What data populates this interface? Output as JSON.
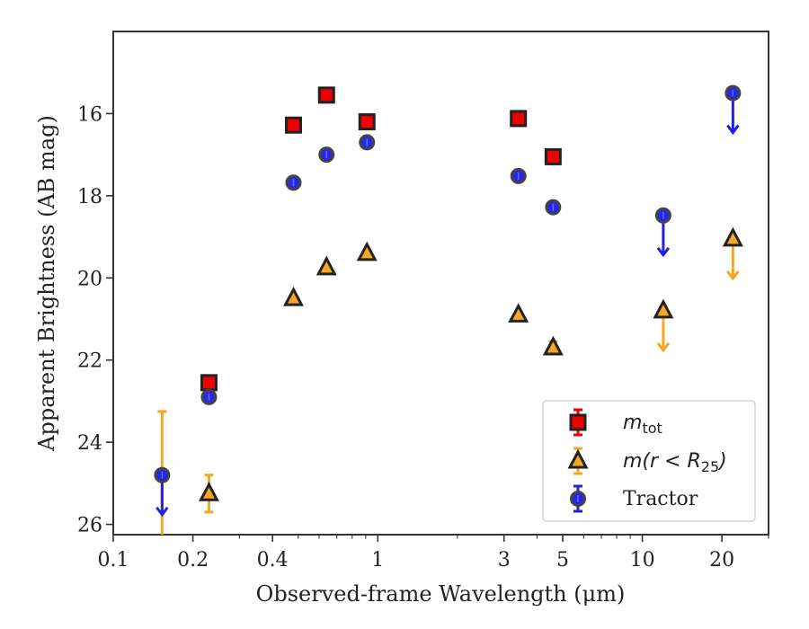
{
  "chart_data": {
    "type": "scatter",
    "xlabel": "Observed-frame Wavelength (μm)",
    "ylabel": "Apparent Brightness (AB mag)",
    "xscale": "log",
    "xlim": [
      0.1,
      30
    ],
    "ylim": [
      26.25,
      14.0
    ],
    "y_inverted": true,
    "xticks": [
      {
        "value": 0.1,
        "label": "0.1"
      },
      {
        "value": 0.2,
        "label": "0.2"
      },
      {
        "value": 0.4,
        "label": "0.4"
      },
      {
        "value": 1,
        "label": "1"
      },
      {
        "value": 3,
        "label": "3"
      },
      {
        "value": 5,
        "label": "5"
      },
      {
        "value": 10,
        "label": "10"
      },
      {
        "value": 20,
        "label": "20"
      }
    ],
    "yticks": [
      {
        "value": 16,
        "label": "16"
      },
      {
        "value": 18,
        "label": "18"
      },
      {
        "value": 20,
        "label": "20"
      },
      {
        "value": 22,
        "label": "22"
      },
      {
        "value": 24,
        "label": "24"
      },
      {
        "value": 26,
        "label": "26"
      }
    ],
    "grid": false,
    "legend_position": "lower-right",
    "series": [
      {
        "name": "m_tot",
        "marker": "square",
        "color": "#ee0000",
        "edge_color": "#222222",
        "points": [
          {
            "x": 0.23,
            "y": 22.55
          },
          {
            "x": 0.48,
            "y": 16.28
          },
          {
            "x": 0.64,
            "y": 15.55
          },
          {
            "x": 0.91,
            "y": 16.2
          },
          {
            "x": 3.4,
            "y": 16.12
          },
          {
            "x": 4.6,
            "y": 17.05
          }
        ]
      },
      {
        "name": "m(r < R25)",
        "marker": "triangle",
        "color": "#f5a623",
        "edge_color": "#222222",
        "points": [
          {
            "x": 0.23,
            "y": 25.25,
            "err_low": 0.45,
            "err_high": 0.45
          },
          {
            "x": 0.48,
            "y": 20.5
          },
          {
            "x": 0.64,
            "y": 19.75
          },
          {
            "x": 0.91,
            "y": 19.4
          },
          {
            "x": 3.4,
            "y": 20.9
          },
          {
            "x": 4.6,
            "y": 21.7,
            "err_low": 0.15,
            "err_high": 0.15
          },
          {
            "x": 12,
            "y": 20.8,
            "upper_limit": true
          },
          {
            "x": 22,
            "y": 19.05,
            "upper_limit": true
          }
        ],
        "error_bars_only": [
          {
            "x": 0.153,
            "y_from": 23.25,
            "y_to": 26.25
          }
        ]
      },
      {
        "name": "Tractor",
        "marker": "circle",
        "color": "#1a1aee",
        "edge_color": "#444444",
        "points": [
          {
            "x": 0.153,
            "y": 24.8,
            "upper_limit": true
          },
          {
            "x": 0.23,
            "y": 22.9
          },
          {
            "x": 0.48,
            "y": 17.68
          },
          {
            "x": 0.64,
            "y": 17.0
          },
          {
            "x": 0.91,
            "y": 16.7
          },
          {
            "x": 3.4,
            "y": 17.52
          },
          {
            "x": 4.6,
            "y": 18.28
          },
          {
            "x": 12,
            "y": 18.48,
            "upper_limit": true
          },
          {
            "x": 22,
            "y": 15.5,
            "upper_limit": true
          }
        ]
      }
    ],
    "legend": [
      {
        "series": 0,
        "base": "m",
        "sub": "tot"
      },
      {
        "series": 1,
        "pre": "m(r < R",
        "sub": "25",
        "post": ")"
      },
      {
        "series": 2,
        "text": "Tractor"
      }
    ]
  }
}
